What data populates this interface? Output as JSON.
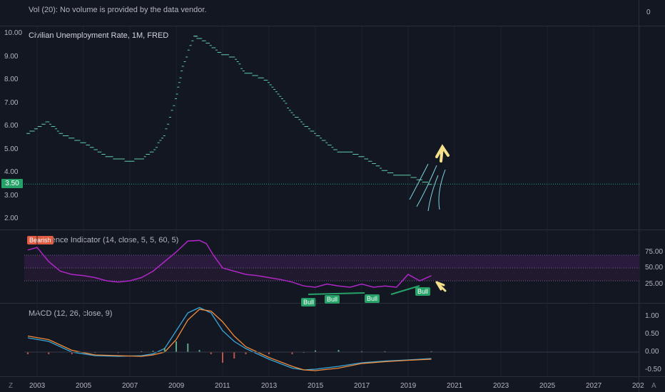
{
  "volume_pane": {
    "label": "Vol (20): No volume is provided by the data vendor.",
    "axis_value": "0"
  },
  "price_pane": {
    "title": "Civilian Unemployment Rate, 1M, FRED",
    "y_ticks": [
      "10.00",
      "9.00",
      "8.00",
      "7.00",
      "6.00",
      "5.00",
      "4.00",
      "3.00",
      "2.00"
    ],
    "current_value": "3.50",
    "accent_color": "#26a269"
  },
  "divergence_pane": {
    "title": "Divergence Indicator (14, close, 5, 5, 60, 5)",
    "y_ticks": [
      "75.00",
      "50.00",
      "25.00"
    ],
    "bear_tag": "Bearish",
    "bull_tags": [
      "Bull",
      "Bull",
      "Bull",
      "Bull"
    ],
    "line_color": "#b026c9"
  },
  "macd_pane": {
    "title": "MACD (12, 26, close, 9)",
    "y_ticks": [
      "1.00",
      "0.50",
      "0.00",
      "-0.50"
    ]
  },
  "x_axis": {
    "ticks": [
      "2003",
      "2005",
      "2007",
      "2009",
      "2011",
      "2013",
      "2015",
      "2017",
      "2019",
      "2021",
      "2023",
      "2025",
      "2027",
      "202"
    ]
  },
  "corners": {
    "left": "Z",
    "right": "A"
  },
  "chart_data": [
    {
      "type": "scatter",
      "title": "Civilian Unemployment Rate, 1M, FRED",
      "x": [
        2002.6,
        2003.0,
        2003.5,
        2004.0,
        2004.5,
        2005.0,
        2005.5,
        2006.0,
        2006.5,
        2007.0,
        2007.5,
        2008.0,
        2008.5,
        2009.0,
        2009.3,
        2009.8,
        2010.0,
        2010.5,
        2011.0,
        2011.5,
        2012.0,
        2012.5,
        2013.0,
        2013.5,
        2014.0,
        2014.5,
        2015.0,
        2015.5,
        2016.0,
        2016.5,
        2017.0,
        2017.5,
        2018.0,
        2018.5,
        2019.0,
        2019.5,
        2020.0
      ],
      "y": [
        5.7,
        5.9,
        6.2,
        5.7,
        5.5,
        5.3,
        5.0,
        4.7,
        4.6,
        4.5,
        4.6,
        4.9,
        5.6,
        7.2,
        8.6,
        9.9,
        9.8,
        9.5,
        9.1,
        9.0,
        8.3,
        8.2,
        7.9,
        7.3,
        6.6,
        6.1,
        5.7,
        5.3,
        4.9,
        4.9,
        4.7,
        4.4,
        4.1,
        3.9,
        3.9,
        3.7,
        3.5
      ],
      "ylim": [
        1.6,
        10.3
      ]
    },
    {
      "type": "line",
      "title": "Divergence Indicator (14, close, 5, 5, 60, 5)",
      "x": [
        2002.6,
        2003.0,
        2003.5,
        2004.0,
        2004.5,
        2005.0,
        2005.5,
        2006.0,
        2006.5,
        2007.0,
        2007.5,
        2008.0,
        2008.5,
        2009.0,
        2009.5,
        2010.0,
        2010.3,
        2010.6,
        2011.0,
        2011.5,
        2012.0,
        2012.5,
        2013.0,
        2013.5,
        2014.0,
        2014.5,
        2015.0,
        2015.5,
        2016.0,
        2016.5,
        2017.0,
        2017.5,
        2018.0,
        2018.5,
        2019.0,
        2019.5,
        2020.0
      ],
      "y": [
        78,
        82,
        60,
        45,
        40,
        38,
        35,
        30,
        28,
        30,
        35,
        45,
        60,
        75,
        92,
        93,
        88,
        70,
        50,
        45,
        40,
        38,
        35,
        32,
        28,
        22,
        20,
        25,
        22,
        20,
        25,
        20,
        22,
        20,
        40,
        30,
        38
      ],
      "ylim": [
        0,
        100
      ]
    },
    {
      "type": "line",
      "title": "MACD (12, 26, close, 9)",
      "x": [
        2002.6,
        2003.5,
        2004.5,
        2005.5,
        2006.5,
        2007.5,
        2008.0,
        2008.5,
        2009.0,
        2009.5,
        2010.0,
        2010.5,
        2011.0,
        2011.5,
        2012.0,
        2013.0,
        2014.0,
        2014.5,
        2015.0,
        2016.0,
        2017.0,
        2018.0,
        2019.0,
        2020.0
      ],
      "series": [
        {
          "values": [
            0.4,
            0.3,
            0.0,
            -0.1,
            -0.12,
            -0.1,
            -0.05,
            0.1,
            0.6,
            1.1,
            1.25,
            1.1,
            0.6,
            0.3,
            0.1,
            -0.2,
            -0.45,
            -0.5,
            -0.48,
            -0.4,
            -0.3,
            -0.25,
            -0.22,
            -0.18
          ]
        },
        {
          "values": [
            0.45,
            0.35,
            0.05,
            -0.08,
            -0.1,
            -0.12,
            -0.08,
            0.0,
            0.35,
            0.9,
            1.2,
            1.15,
            0.85,
            0.45,
            0.15,
            -0.15,
            -0.4,
            -0.5,
            -0.52,
            -0.45,
            -0.32,
            -0.27,
            -0.23,
            -0.2
          ]
        }
      ],
      "ylim": [
        -0.65,
        1.3
      ]
    }
  ]
}
